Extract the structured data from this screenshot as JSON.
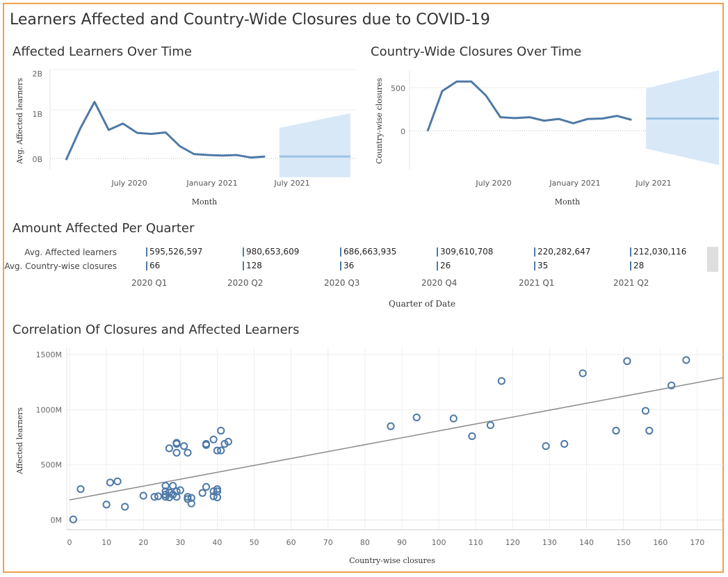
{
  "dashboard": {
    "title": "Learners Affected and Country-Wide Closures due to COVID-19"
  },
  "charts": {
    "learners_over_time": {
      "title": "Affected Learners Over Time",
      "ylabel": "Avg. Affected learners",
      "xlabel": "Month",
      "y_ticks": [
        "2B",
        "1B",
        "0B"
      ],
      "x_ticks": [
        "July 2020",
        "January 2021",
        "July 2021"
      ]
    },
    "closures_over_time": {
      "title": "Country-Wide Closures Over Time",
      "ylabel": "Country-wise closures",
      "xlabel": "Month",
      "y_ticks": [
        "500",
        "0"
      ],
      "x_ticks": [
        "July 2020",
        "January 2021",
        "July 2021"
      ]
    },
    "quarter_table": {
      "title": "Amount Affected Per Quarter",
      "row_labels": [
        "Avg. Affected learners",
        "Avg. Country-wise closures"
      ],
      "quarters": [
        "2020 Q1",
        "2020 Q2",
        "2020 Q3",
        "2020 Q4",
        "2021 Q1",
        "2021 Q2"
      ],
      "learners": [
        "595,526,597",
        "980,653,609",
        "686,663,935",
        "309,610,708",
        "220,282,647",
        "212,030,116"
      ],
      "closures": [
        "66",
        "128",
        "36",
        "26",
        "35",
        "28"
      ],
      "xlabel": "Quarter of Date"
    },
    "correlation": {
      "title": "Correlation Of Closures and Affected Learners",
      "ylabel": "Affected learners",
      "xlabel": "Country-wise closures",
      "y_ticks": [
        "1500M",
        "1000M",
        "500M",
        "0M"
      ],
      "x_ticks": [
        "0",
        "10",
        "20",
        "30",
        "40",
        "50",
        "60",
        "70",
        "80",
        "90",
        "100",
        "110",
        "120",
        "130",
        "140",
        "150",
        "160",
        "170"
      ]
    }
  },
  "colors": {
    "line": "#4e79a7",
    "forecast": "#9dc3e6",
    "band": "#d8e8f6",
    "trend": "#8c8c8c",
    "border": "#f0a04b"
  },
  "chart_data": [
    {
      "type": "line",
      "name": "learners_over_time",
      "x": [
        "2020-02",
        "2020-03",
        "2020-04",
        "2020-05",
        "2020-06",
        "2020-07",
        "2020-08",
        "2020-09",
        "2020-10",
        "2020-11",
        "2020-12",
        "2021-01",
        "2021-02",
        "2021-03",
        "2021-04"
      ],
      "values": [
        150,
        790,
        1330,
        760,
        890,
        700,
        680,
        710,
        430,
        270,
        250,
        240,
        250,
        200,
        220
      ],
      "unit": "M",
      "forecast": {
        "x": [
          "2021-05",
          "2021-10"
        ],
        "value": 220,
        "band_low": [
          -200,
          -200
        ],
        "band_high": [
          800,
          1100
        ]
      },
      "ylim": [
        -300,
        2100
      ]
    },
    {
      "type": "line",
      "name": "closures_over_time",
      "x": [
        "2020-02",
        "2020-03",
        "2020-04",
        "2020-05",
        "2020-06",
        "2020-07",
        "2020-08",
        "2020-09",
        "2020-10",
        "2020-11",
        "2020-12",
        "2021-01",
        "2021-02",
        "2021-03",
        "2021-04"
      ],
      "values": [
        0,
        460,
        570,
        570,
        410,
        160,
        150,
        160,
        120,
        140,
        90,
        140,
        145,
        175,
        130
      ],
      "forecast": {
        "x": [
          "2021-05",
          "2021-10"
        ],
        "value": 145,
        "band_low": [
          -200,
          -390
        ],
        "band_high": [
          490,
          700
        ]
      },
      "ylim": [
        -450,
        620
      ]
    },
    {
      "type": "scatter",
      "name": "correlation",
      "xlim": [
        0,
        177
      ],
      "ylim": [
        -50,
        1580
      ],
      "unit": "M",
      "points": [
        [
          1,
          5
        ],
        [
          3,
          280
        ],
        [
          10,
          140
        ],
        [
          11,
          340
        ],
        [
          13,
          350
        ],
        [
          15,
          120
        ],
        [
          20,
          220
        ],
        [
          23,
          210
        ],
        [
          24,
          215
        ],
        [
          26,
          310
        ],
        [
          26,
          260
        ],
        [
          26,
          230
        ],
        [
          26,
          210
        ],
        [
          27,
          650
        ],
        [
          27,
          250
        ],
        [
          27,
          205
        ],
        [
          28,
          310
        ],
        [
          28,
          230
        ],
        [
          29,
          700
        ],
        [
          29,
          690
        ],
        [
          29,
          610
        ],
        [
          29,
          260
        ],
        [
          29,
          210
        ],
        [
          30,
          270
        ],
        [
          31,
          670
        ],
        [
          32,
          610
        ],
        [
          32,
          210
        ],
        [
          32,
          190
        ],
        [
          33,
          200
        ],
        [
          33,
          150
        ],
        [
          36,
          245
        ],
        [
          37,
          690
        ],
        [
          37,
          680
        ],
        [
          37,
          300
        ],
        [
          39,
          730
        ],
        [
          39,
          260
        ],
        [
          39,
          215
        ],
        [
          40,
          630
        ],
        [
          40,
          280
        ],
        [
          40,
          260
        ],
        [
          40,
          205
        ],
        [
          41,
          810
        ],
        [
          41,
          630
        ],
        [
          42,
          690
        ],
        [
          43,
          710
        ],
        [
          87,
          850
        ],
        [
          94,
          930
        ],
        [
          104,
          920
        ],
        [
          109,
          760
        ],
        [
          114,
          860
        ],
        [
          117,
          1260
        ],
        [
          129,
          670
        ],
        [
          134,
          690
        ],
        [
          139,
          1330
        ],
        [
          148,
          810
        ],
        [
          151,
          1440
        ],
        [
          156,
          990
        ],
        [
          157,
          810
        ],
        [
          163,
          1220
        ],
        [
          167,
          1450
        ]
      ],
      "trend": {
        "x": [
          0,
          177
        ],
        "y": [
          182,
          1290
        ]
      }
    }
  ]
}
